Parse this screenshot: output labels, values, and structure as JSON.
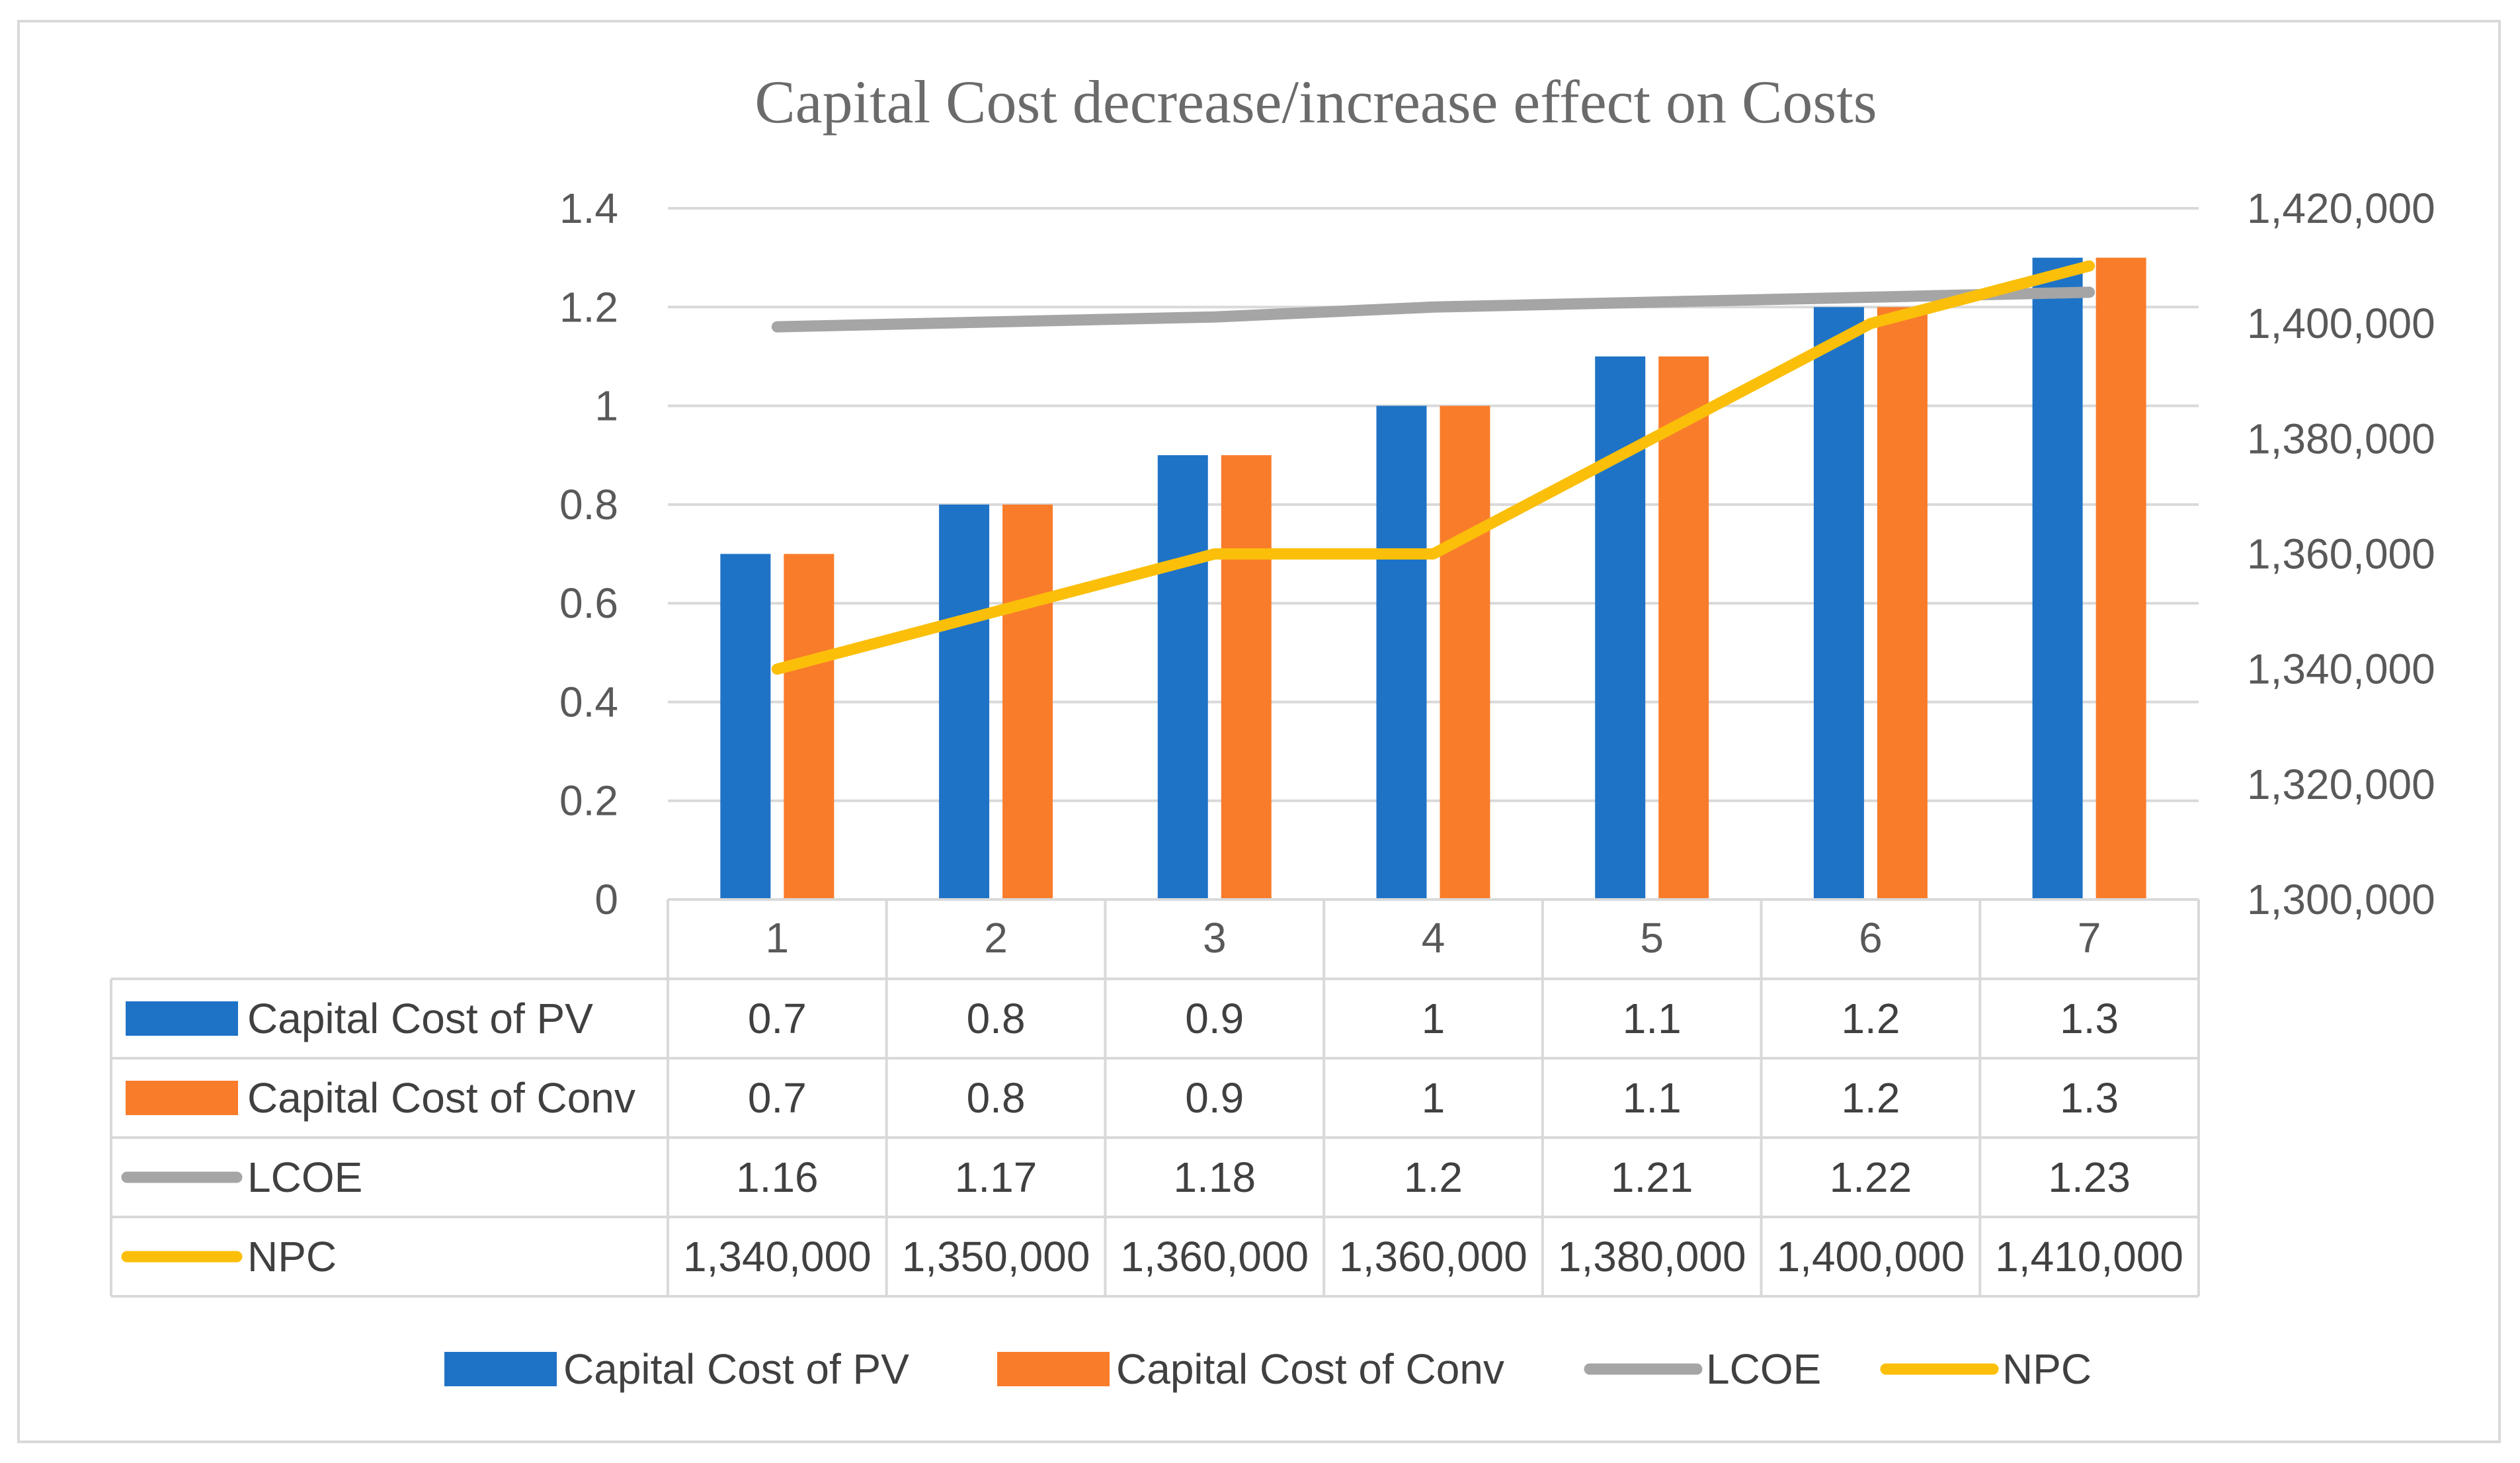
{
  "chart_data": {
    "type": "bar",
    "title": "Capital Cost decrease/increase effect on Costs",
    "categories": [
      "1",
      "2",
      "3",
      "4",
      "5",
      "6",
      "7"
    ],
    "primary_axis": {
      "range": [
        0,
        1.4
      ],
      "ticks": [
        "0",
        "0.2",
        "0.4",
        "0.6",
        "0.8",
        "1",
        "1.2",
        "1.4"
      ]
    },
    "secondary_axis": {
      "range": [
        1300000,
        1420000
      ],
      "ticks": [
        "1,300,000",
        "1,320,000",
        "1,340,000",
        "1,360,000",
        "1,380,000",
        "1,400,000",
        "1,420,000"
      ]
    },
    "series": [
      {
        "name": "Capital Cost of PV",
        "type": "bar",
        "axis": "primary",
        "color": "#1f73c6",
        "values": [
          0.7,
          0.8,
          0.9,
          1,
          1.1,
          1.2,
          1.3
        ],
        "labels": [
          "0.7",
          "0.8",
          "0.9",
          "1",
          "1.1",
          "1.2",
          "1.3"
        ]
      },
      {
        "name": "Capital Cost of Conv",
        "type": "bar",
        "axis": "primary",
        "color": "#f97c2b",
        "values": [
          0.7,
          0.8,
          0.9,
          1,
          1.1,
          1.2,
          1.3
        ],
        "labels": [
          "0.7",
          "0.8",
          "0.9",
          "1",
          "1.1",
          "1.2",
          "1.3"
        ]
      },
      {
        "name": "LCOE",
        "type": "line",
        "axis": "primary",
        "color": "#a5a5a5",
        "values": [
          1.16,
          1.17,
          1.18,
          1.2,
          1.21,
          1.22,
          1.23
        ],
        "labels": [
          "1.16",
          "1.17",
          "1.18",
          "1.2",
          "1.21",
          "1.22",
          "1.23"
        ]
      },
      {
        "name": "NPC",
        "type": "line",
        "axis": "secondary",
        "color": "#fbbf0a",
        "values": [
          1340000,
          1350000,
          1360000,
          1360000,
          1380000,
          1400000,
          1410000
        ],
        "labels": [
          "1,340,000",
          "1,350,000",
          "1,360,000",
          "1,360,000",
          "1,380,000",
          "1,400,000",
          "1,410,000"
        ]
      }
    ],
    "legend": "bottom",
    "grid": true,
    "data_table": true
  }
}
